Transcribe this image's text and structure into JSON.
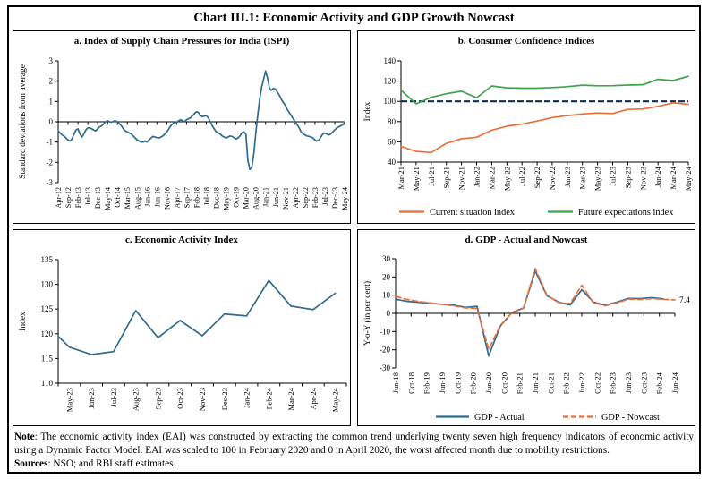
{
  "title": "Chart III.1: Economic Activity and GDP Growth Nowcast",
  "colors": {
    "blue": "#2e6b8d",
    "orange": "#e7703c",
    "green": "#3da44a",
    "navy": "#132c47",
    "axis": "#000000"
  },
  "note": {
    "note_label": "Note",
    "note_text": ": The economic activity index (EAI) was constructed by extracting the common trend underlying twenty seven high frequency indicators of economic activity using a Dynamic Factor Model. EAI was scaled to 100 in February 2020 and 0 in April 2020, the worst affected month due to mobility restrictions.",
    "sources_label": "Sources",
    "sources_text": ": NSO; and RBI staff estimates."
  },
  "chart_data": [
    {
      "id": "a",
      "type": "line",
      "title": "a. Index of Supply Chain Pressures for India (ISPI)",
      "xlabel": "",
      "ylabel": "Standard deviations from average",
      "ylim": [
        -3,
        3
      ],
      "yticks": [
        3,
        2,
        1,
        0,
        -1,
        -2,
        -3
      ],
      "zero_axis": true,
      "grid": false,
      "x_labels": [
        "Apr-12",
        "Sep-12",
        "Feb-13",
        "Jul-13",
        "Dec-13",
        "May-14",
        "Oct-14",
        "Mar-15",
        "Aug-15",
        "Jan-16",
        "Jun-16",
        "Nov-16",
        "Apr-17",
        "Sep-17",
        "Feb-18",
        "Jul-18",
        "Dec-18",
        "May-19",
        "Oct-19",
        "Mar-20",
        "Aug-20",
        "Jan-21",
        "Jun-21",
        "Nov-21",
        "Apr-22",
        "Sep-22",
        "Feb-23",
        "Jul-23",
        "Dec-23",
        "May-24"
      ],
      "x_frequency": "monthly, Apr-2012 to May-2024",
      "series": [
        {
          "name": "ISPI",
          "color": "blue",
          "style": "solid",
          "values": [
            -0.45,
            -0.55,
            -0.65,
            -0.7,
            -0.8,
            -0.9,
            -0.95,
            -0.85,
            -0.6,
            -0.4,
            -0.35,
            -0.6,
            -0.75,
            -0.6,
            -0.4,
            -0.3,
            -0.3,
            -0.35,
            -0.4,
            -0.45,
            -0.35,
            -0.25,
            -0.2,
            -0.1,
            0.0,
            0.05,
            0.0,
            -0.02,
            0.03,
            0.05,
            0.0,
            -0.1,
            -0.2,
            -0.35,
            -0.45,
            -0.5,
            -0.55,
            -0.6,
            -0.7,
            -0.8,
            -0.9,
            -0.95,
            -1.0,
            -1.0,
            -0.95,
            -1.0,
            -0.9,
            -0.8,
            -0.72,
            -0.75,
            -0.78,
            -0.8,
            -0.75,
            -0.7,
            -0.6,
            -0.5,
            -0.35,
            -0.2,
            -0.1,
            0.0,
            -0.05,
            0.05,
            0.1,
            0.05,
            0.0,
            0.1,
            0.15,
            0.2,
            0.3,
            0.4,
            0.5,
            0.45,
            0.3,
            0.25,
            0.28,
            0.3,
            0.2,
            0.0,
            -0.2,
            -0.35,
            -0.5,
            -0.55,
            -0.6,
            -0.7,
            -0.75,
            -0.8,
            -0.75,
            -0.7,
            -0.72,
            -0.78,
            -0.85,
            -0.8,
            -0.7,
            -0.55,
            -0.5,
            -0.6,
            -1.9,
            -2.35,
            -2.25,
            -1.6,
            -0.6,
            0.3,
            1.1,
            1.7,
            2.1,
            2.5,
            2.15,
            1.65,
            1.55,
            1.65,
            1.6,
            1.45,
            1.3,
            1.1,
            0.95,
            0.8,
            0.6,
            0.45,
            0.3,
            0.15,
            0.0,
            -0.15,
            -0.3,
            -0.5,
            -0.6,
            -0.65,
            -0.7,
            -0.72,
            -0.75,
            -0.8,
            -0.9,
            -0.95,
            -0.9,
            -0.75,
            -0.6,
            -0.55,
            -0.6,
            -0.65,
            -0.6,
            -0.5,
            -0.4,
            -0.3,
            -0.25,
            -0.2,
            -0.15,
            -0.05
          ]
        }
      ]
    },
    {
      "id": "b",
      "type": "line",
      "title": "b. Consumer Confidence Indices",
      "xlabel": "",
      "ylabel": "Index",
      "ylim": [
        40,
        140
      ],
      "yticks": [
        140,
        120,
        100,
        80,
        60,
        40
      ],
      "zero_axis": false,
      "grid": false,
      "ref_line": {
        "y": 100,
        "color": "navy",
        "style": "dashed"
      },
      "x_labels": [
        "Mar-21",
        "May-21",
        "Jul-21",
        "Sep-21",
        "Nov-21",
        "Jan-22",
        "Mar-22",
        "May-22",
        "Jul-22",
        "Sep-22",
        "Nov-22",
        "Jan-23",
        "Mar-23",
        "May-23",
        "Jul-23",
        "Sep-23",
        "Nov-23",
        "Jan-24",
        "Mar-24",
        "May-24"
      ],
      "series": [
        {
          "name": "Current situation index",
          "color": "orange",
          "style": "solid",
          "values": [
            55.5,
            50.5,
            49.5,
            58.5,
            63.0,
            64.5,
            71.5,
            75.5,
            77.5,
            80.5,
            84.0,
            85.8,
            87.5,
            88.5,
            88.0,
            92.0,
            92.5,
            95.0,
            98.5,
            97.1
          ]
        },
        {
          "name": "Future expectations index",
          "color": "green",
          "style": "solid",
          "values": [
            111.0,
            97.5,
            104.0,
            107.5,
            110.0,
            103.5,
            115.2,
            113.4,
            113.0,
            113.0,
            113.6,
            114.5,
            116.0,
            115.4,
            115.5,
            116.1,
            116.5,
            121.8,
            120.5,
            124.8
          ]
        }
      ],
      "legend": [
        {
          "label": "Current situation index",
          "color": "orange",
          "style": "solid"
        },
        {
          "label": "Future expectations index",
          "color": "green",
          "style": "solid"
        }
      ],
      "legend_position": "bottom"
    },
    {
      "id": "c",
      "type": "line",
      "title": "c. Economic Activity Index",
      "xlabel": "",
      "ylabel": "Index",
      "ylim": [
        110,
        135
      ],
      "yticks": [
        135,
        130,
        125,
        120,
        115,
        110
      ],
      "zero_axis": false,
      "grid": false,
      "labels_between_ticks": true,
      "x_labels": [
        "May-23",
        "Jun-23",
        "Jul-23",
        "Aug-23",
        "Sep-23",
        "Oct-23",
        "Nov-23",
        "Dec-23",
        "Jan-24",
        "Feb-24",
        "Mar-24",
        "Apr-24",
        "May-24"
      ],
      "series": [
        {
          "name": "Economic Activity Index",
          "color": "blue",
          "style": "solid",
          "values": [
            119.5,
            117.3,
            115.8,
            116.4,
            124.7,
            119.2,
            122.7,
            119.6,
            124.0,
            123.6,
            130.8,
            125.6,
            124.9,
            128.2
          ]
        }
      ]
    },
    {
      "id": "d",
      "type": "line",
      "title": "d. GDP - Actual and Nowcast",
      "xlabel": "",
      "ylabel": "Y-o-Y (in per cent)",
      "ylim": [
        -30,
        30
      ],
      "yticks": [
        30,
        20,
        10,
        0,
        -10,
        -20,
        -30
      ],
      "zero_axis": true,
      "grid": false,
      "x_labels": [
        "Jun-18",
        "Oct-18",
        "Feb-19",
        "Jun-19",
        "Oct-19",
        "Feb-20",
        "Jun-20",
        "Oct-20",
        "Feb-21",
        "Jun-21",
        "Oct-21",
        "Feb-22",
        "Jun-22",
        "Oct-22",
        "Feb-23",
        "Jun-23",
        "Oct-23",
        "Feb-24",
        "Jun-24"
      ],
      "x_frequency": "quarterly, Jun-2018 to Jun-2024",
      "annotation": {
        "text": "7.4",
        "value": 7.4
      },
      "series": [
        {
          "name": "GDP - Actual",
          "color": "blue",
          "style": "solid",
          "x_span": 25,
          "values": [
            7.7,
            6.6,
            6.1,
            5.5,
            5.0,
            4.5,
            3.3,
            3.9,
            -23.4,
            -7.0,
            0.5,
            3.0,
            23.3,
            9.7,
            6.2,
            4.6,
            13.0,
            6.2,
            4.5,
            6.1,
            8.2,
            8.1,
            8.6,
            7.9
          ]
        },
        {
          "name": "GDP - Nowcast",
          "color": "orange",
          "style": "dashed",
          "x_span": 25,
          "values": [
            9.3,
            7.6,
            6.5,
            5.7,
            4.9,
            4.2,
            3.0,
            2.7,
            -19.8,
            -6.6,
            0.3,
            2.8,
            24.6,
            10.0,
            6.0,
            5.3,
            15.5,
            5.8,
            4.2,
            5.7,
            7.8,
            7.6,
            8.1,
            7.7,
            7.4
          ]
        }
      ],
      "legend": [
        {
          "label": "GDP - Actual",
          "color": "blue",
          "style": "solid"
        },
        {
          "label": "GDP - Nowcast",
          "color": "orange",
          "style": "dashed"
        }
      ],
      "legend_position": "bottom"
    }
  ]
}
